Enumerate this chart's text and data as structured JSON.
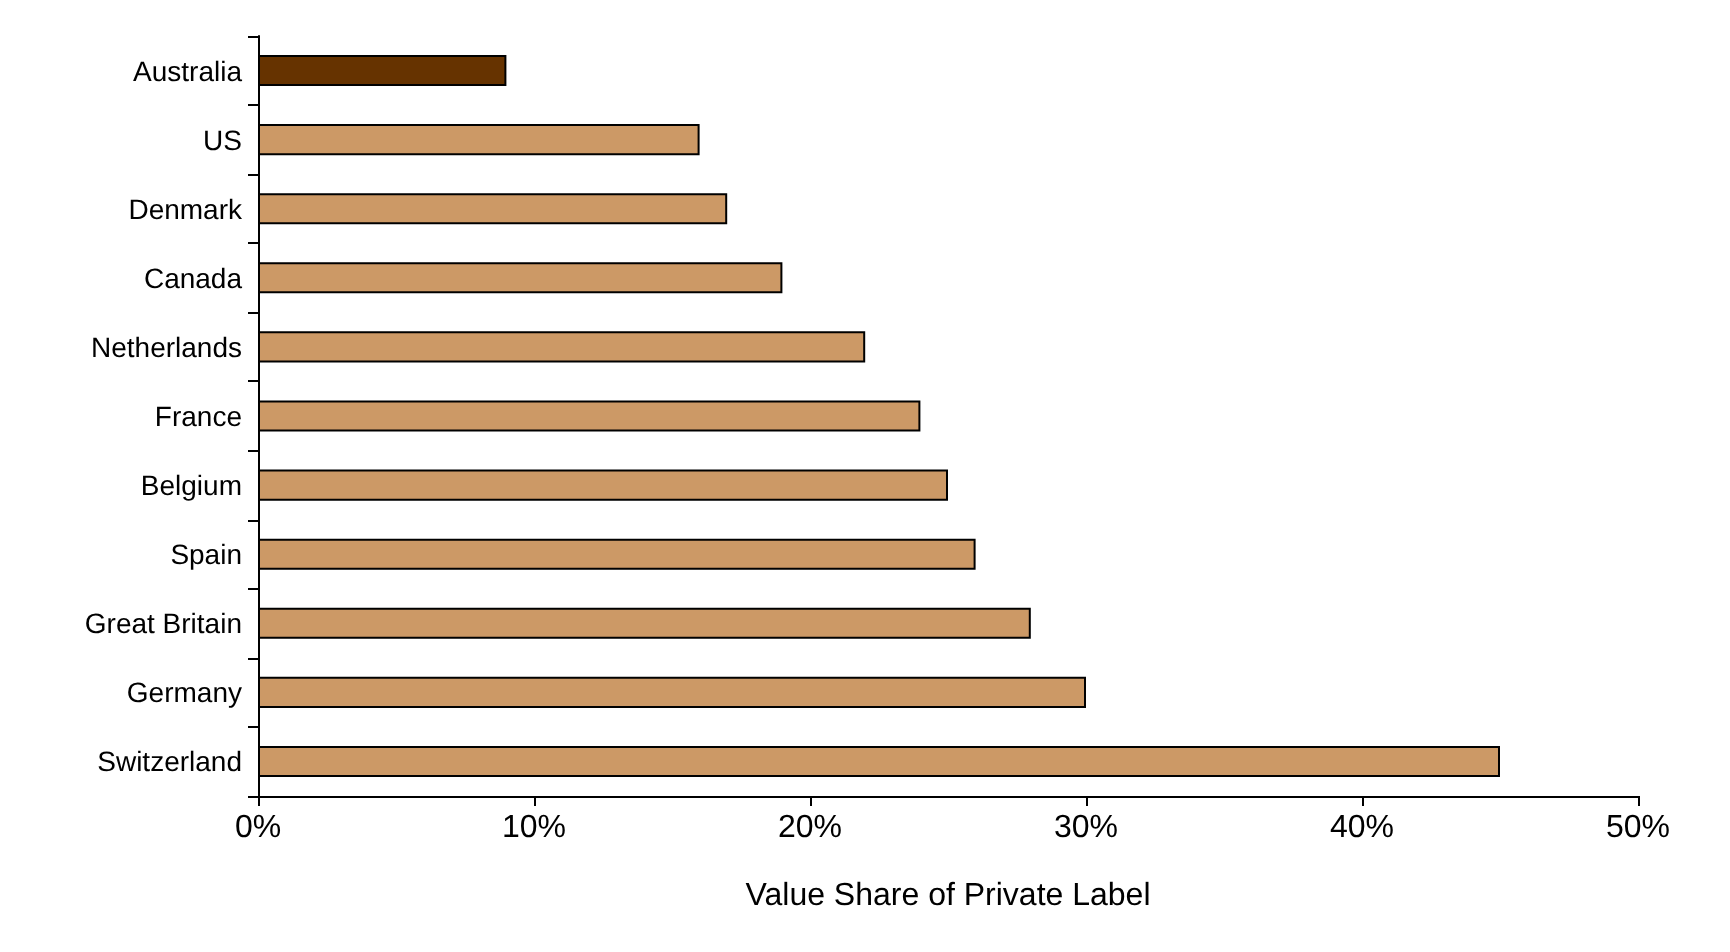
{
  "chart_data": {
    "type": "bar",
    "orientation": "horizontal",
    "xlabel": "Value Share of Private Label",
    "categories": [
      "Australia",
      "US",
      "Denmark",
      "Canada",
      "Netherlands",
      "France",
      "Belgium",
      "Spain",
      "Great Britain",
      "Germany",
      "Switzerland"
    ],
    "values": [
      9,
      16,
      17,
      19,
      22,
      24,
      25,
      26,
      28,
      30,
      45
    ],
    "colors": [
      "#663300",
      "#cc9966",
      "#cc9966",
      "#cc9966",
      "#cc9966",
      "#cc9966",
      "#cc9966",
      "#cc9966",
      "#cc9966",
      "#cc9966",
      "#cc9966"
    ],
    "xlim": [
      0,
      50
    ],
    "xticks": [
      {
        "value": 0,
        "label": "0%"
      },
      {
        "value": 10,
        "label": "10%"
      },
      {
        "value": 20,
        "label": "20%"
      },
      {
        "value": 30,
        "label": "30%"
      },
      {
        "value": 40,
        "label": "40%"
      },
      {
        "value": 50,
        "label": "50%"
      }
    ],
    "grid": false
  }
}
